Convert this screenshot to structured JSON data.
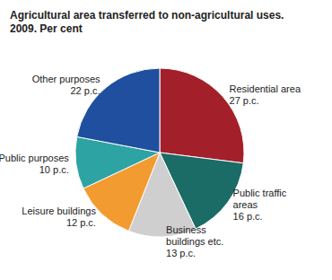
{
  "chart_data": {
    "type": "pie",
    "title": "Agricultural area transferred to non-agricultural uses.\n2009. Per cent",
    "categories": [
      "Residential area",
      "Public traffic areas",
      "Business buildings etc.",
      "Leisure buildings",
      "Public purposes",
      "Other purposes"
    ],
    "values": [
      27,
      16,
      13,
      12,
      10,
      22
    ],
    "value_labels": [
      "27 p.c.",
      "16 p.c.",
      "13 p.c.",
      "12 p.c.",
      "10 p.c.",
      "22 p.c."
    ],
    "colors": [
      "#a3202a",
      "#1b6b66",
      "#cfcfcf",
      "#f29b30",
      "#2ea3a3",
      "#1f4f9e"
    ],
    "data_labels": true
  }
}
